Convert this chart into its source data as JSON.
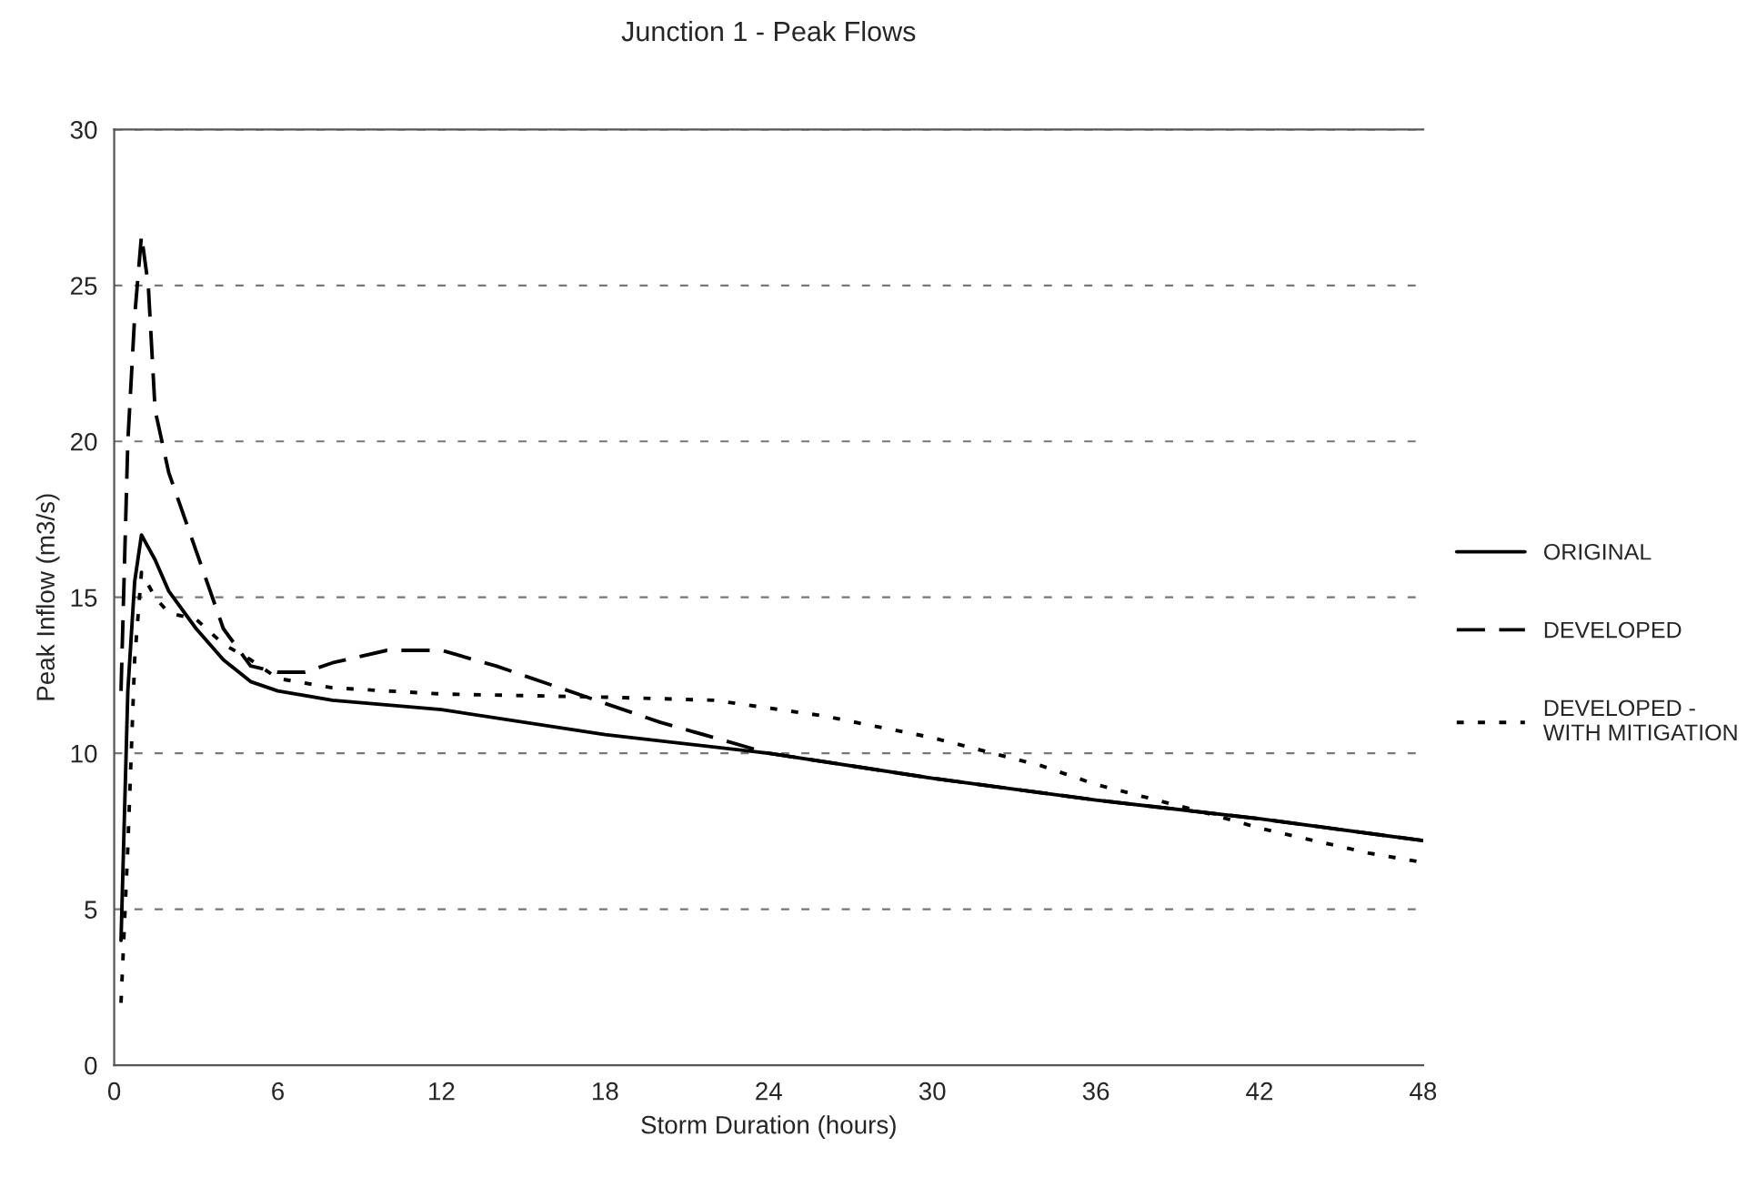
{
  "chart_data": {
    "type": "line",
    "title": "Junction 1 - Peak Flows",
    "xlabel": "Storm Duration (hours)",
    "ylabel": "Peak Inflow (m3/s)",
    "xlim": [
      0,
      48
    ],
    "xticks": [
      0,
      6,
      12,
      18,
      24,
      30,
      36,
      42,
      48
    ],
    "ylim": [
      0,
      30
    ],
    "yticks": [
      0,
      5,
      10,
      15,
      20,
      25,
      30
    ],
    "grid": "y",
    "legend": "right",
    "marker": "none",
    "series": [
      {
        "name": "ORIGINAL",
        "color": "#000000",
        "line_style": "solid",
        "x": [
          0.25,
          0.5,
          0.75,
          1,
          1.5,
          2,
          3,
          4,
          5,
          6,
          8,
          12,
          18,
          24,
          30,
          36,
          42,
          48
        ],
        "values": [
          4,
          12,
          15.5,
          17,
          16.2,
          15.2,
          14,
          13,
          12.3,
          12,
          11.7,
          11.4,
          10.6,
          10,
          9.2,
          8.5,
          7.9,
          7.2
        ]
      },
      {
        "name": "DEVELOPED",
        "color": "#000000",
        "line_style": "dashed",
        "x": [
          0.25,
          0.5,
          0.75,
          1,
          1.25,
          1.5,
          2,
          3,
          4,
          5,
          6,
          7,
          8,
          10,
          12,
          14,
          16,
          18,
          20,
          24,
          30,
          36,
          42,
          48
        ],
        "values": [
          12,
          20,
          24,
          26.6,
          25,
          21,
          19,
          16.5,
          14,
          12.8,
          12.6,
          12.6,
          12.9,
          13.3,
          13.3,
          12.8,
          12.2,
          11.6,
          11,
          10,
          9.2,
          8.5,
          7.9,
          7.2
        ]
      },
      {
        "name": "DEVELOPED - WITH MITIGATION",
        "color": "#000000",
        "line_style": "dotted",
        "x": [
          0.25,
          0.5,
          0.75,
          1,
          1.5,
          2,
          3,
          4,
          5,
          6,
          8,
          12,
          18,
          22,
          26,
          30,
          34,
          36,
          40,
          42,
          46,
          48
        ],
        "values": [
          2,
          7,
          13,
          15.8,
          15,
          14.5,
          14.3,
          13.5,
          13,
          12.4,
          12.1,
          11.9,
          11.8,
          11.7,
          11.2,
          10.5,
          9.6,
          9.0,
          8.1,
          7.6,
          6.8,
          6.5
        ]
      }
    ]
  }
}
